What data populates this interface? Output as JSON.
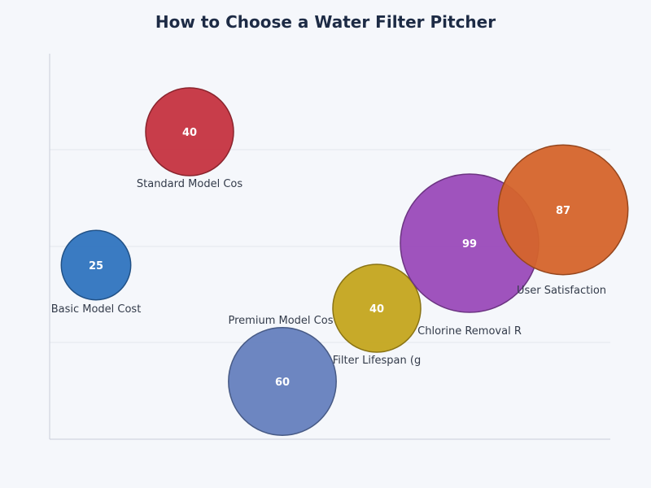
{
  "chart_data": {
    "type": "bubble",
    "title": "How to Choose a Water Filter Pitcher",
    "xlabel": "",
    "ylabel": "",
    "grid": "horizontal",
    "points": [
      {
        "label": "Basic Model Cost",
        "value": 25,
        "color": "#2f74bf"
      },
      {
        "label": "Standard Model Cos",
        "value": 40,
        "color": "#c53340"
      },
      {
        "label": "Premium Model Cos",
        "value": 60,
        "color": "#6580be"
      },
      {
        "label": "Filter Lifespan (g",
        "value": 40,
        "color": "#c4a51d"
      },
      {
        "label": "Chlorine Removal R",
        "value": 99,
        "color": "#9a4ab9"
      },
      {
        "label": "User Satisfaction",
        "value": 87,
        "color": "#d5642b"
      }
    ]
  }
}
